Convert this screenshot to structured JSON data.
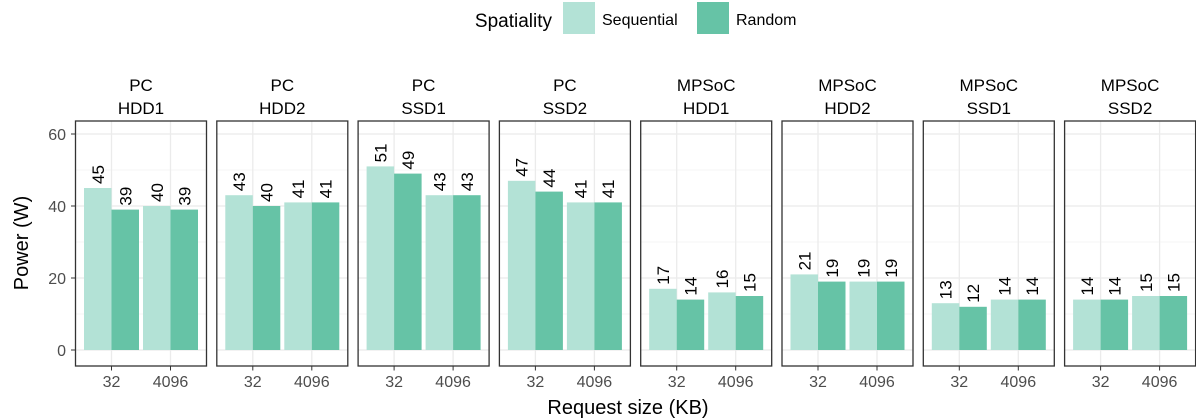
{
  "chart_data": {
    "type": "bar",
    "xlabel": "Request size (KB)",
    "ylabel": "Power (W)",
    "ylim": [
      0,
      62
    ],
    "yticks": [
      0,
      20,
      40,
      60
    ],
    "grid": true,
    "legend": {
      "title": "Spatiality",
      "placement": "top-center"
    },
    "categories": [
      "32",
      "4096"
    ],
    "series_meta": [
      {
        "name": "Sequential",
        "color": "#b3e2d6"
      },
      {
        "name": "Random",
        "color": "#66c3a6"
      }
    ],
    "facets": [
      {
        "platform": "PC",
        "device": "HDD1",
        "sequential": [
          45,
          40
        ],
        "random": [
          39,
          39
        ]
      },
      {
        "platform": "PC",
        "device": "HDD2",
        "sequential": [
          43,
          41
        ],
        "random": [
          40,
          41
        ]
      },
      {
        "platform": "PC",
        "device": "SSD1",
        "sequential": [
          51,
          43
        ],
        "random": [
          49,
          43
        ]
      },
      {
        "platform": "PC",
        "device": "SSD2",
        "sequential": [
          47,
          41
        ],
        "random": [
          44,
          41
        ]
      },
      {
        "platform": "MPSoC",
        "device": "HDD1",
        "sequential": [
          17,
          16
        ],
        "random": [
          14,
          15
        ]
      },
      {
        "platform": "MPSoC",
        "device": "HDD2",
        "sequential": [
          21,
          19
        ],
        "random": [
          19,
          19
        ]
      },
      {
        "platform": "MPSoC",
        "device": "SSD1",
        "sequential": [
          13,
          14
        ],
        "random": [
          12,
          14
        ]
      },
      {
        "platform": "MPSoC",
        "device": "SSD2",
        "sequential": [
          14,
          15
        ],
        "random": [
          14,
          15
        ]
      }
    ]
  }
}
